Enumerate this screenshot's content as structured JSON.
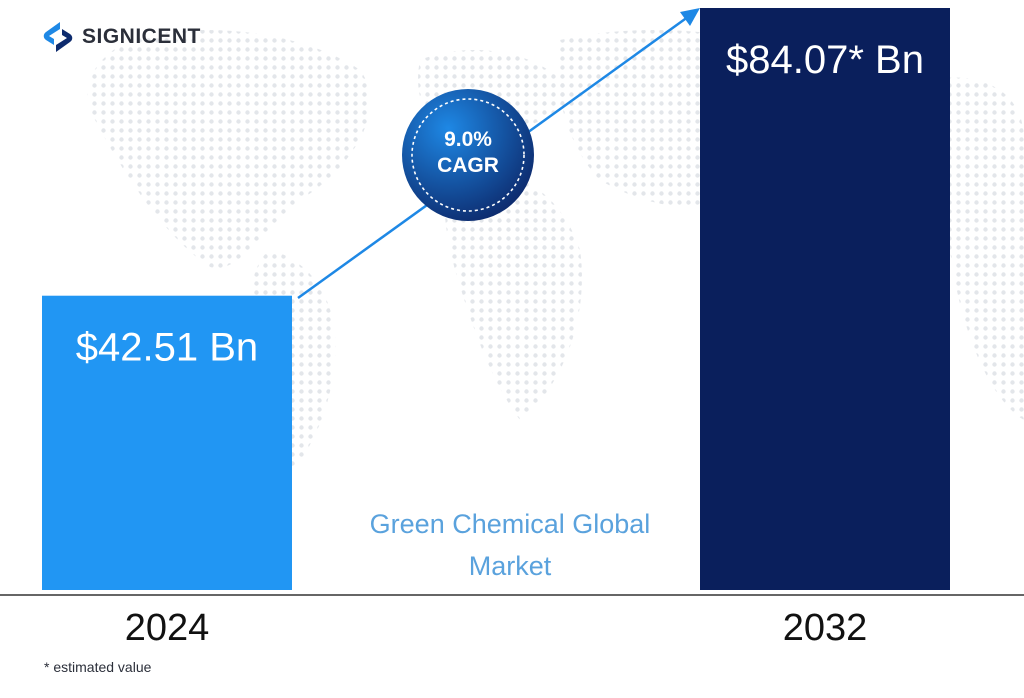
{
  "brand": {
    "name": "SIGNICENT",
    "logo_icon": "signicent-s-icon"
  },
  "footnote": "* estimated value",
  "colors": {
    "bar_2024": "#2196f3",
    "bar_2032": "#0a1f5c",
    "arrow": "#1e88e5",
    "center_label": "#5aa2dd",
    "badge_light": "#1e88e5",
    "badge_dark": "#0d2b6e"
  },
  "chart_data": {
    "type": "bar",
    "categories": [
      "2024",
      "2032"
    ],
    "values": [
      42.51,
      84.07
    ],
    "value_labels": [
      "$42.51 Bn",
      "$84.07* Bn"
    ],
    "unit": "USD Bn",
    "center_label_lines": [
      "Green Chemical Global",
      "Market"
    ],
    "cagr_badge": {
      "line1": "9.0%",
      "line2": "CAGR"
    },
    "trend_arrow": true,
    "grid": false,
    "legend": "none"
  }
}
